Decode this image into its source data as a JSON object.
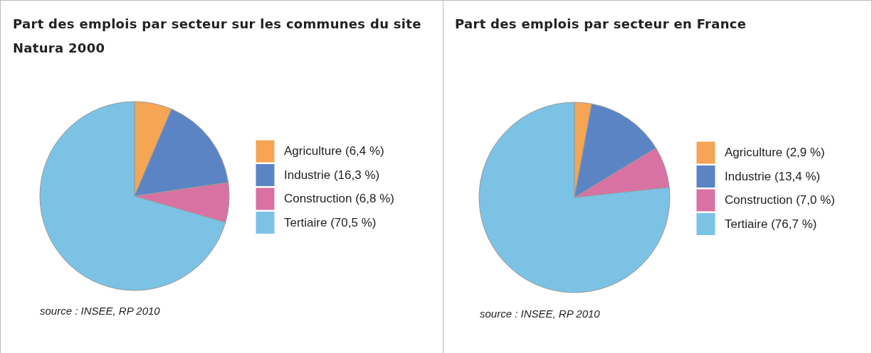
{
  "chart_data": [
    {
      "type": "pie",
      "title": "Part des emplois par secteur sur les communes du site Natura 2000",
      "categories": [
        "Agriculture (6,4 %)",
        "Industrie (16,3 %)",
        "Construction (6,8 %)",
        "Tertiaire (70,5 %)"
      ],
      "values": [
        6.4,
        16.3,
        6.8,
        70.5
      ],
      "colors": [
        "#f5a553",
        "#5b84c4",
        "#d872a3",
        "#7cc2e4"
      ],
      "legend": "right",
      "annotations": [
        "source : INSEE, RP 2010"
      ]
    },
    {
      "type": "pie",
      "title": "Part des emplois par secteur en France",
      "categories": [
        "Agriculture (2,9 %)",
        "Industrie (13,4 %)",
        "Construction (7,0 %)",
        "Tertiaire (76,7 %)"
      ],
      "values": [
        2.9,
        13.4,
        7.0,
        76.7
      ],
      "colors": [
        "#f5a553",
        "#5b84c4",
        "#d872a3",
        "#7cc2e4"
      ],
      "legend": "right",
      "annotations": [
        "source : INSEE, RP 2010"
      ]
    }
  ]
}
